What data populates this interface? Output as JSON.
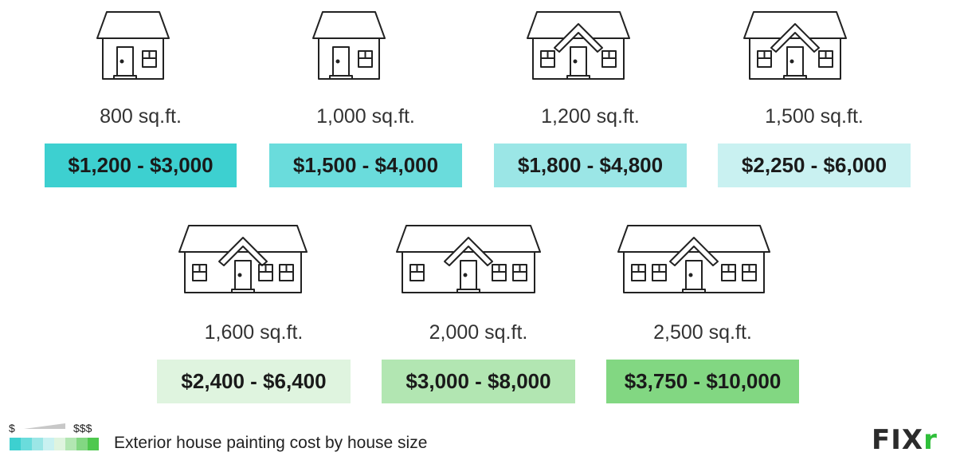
{
  "items": [
    {
      "sqft": "800 sq.ft.",
      "price": "$1,200 - $3,000",
      "color": "#3dd0d0",
      "house": {
        "gable": false,
        "left_windows": 0,
        "right_windows": 1
      }
    },
    {
      "sqft": "1,000 sq.ft.",
      "price": "$1,500 - $4,000",
      "color": "#6adcdc",
      "house": {
        "gable": false,
        "left_windows": 0,
        "right_windows": 1
      }
    },
    {
      "sqft": "1,200 sq.ft.",
      "price": "$1,800 - $4,800",
      "color": "#9be6e6",
      "house": {
        "gable": true,
        "left_windows": 1,
        "right_windows": 1
      }
    },
    {
      "sqft": "1,500 sq.ft.",
      "price": "$2,250 - $6,000",
      "color": "#c9f1f1",
      "house": {
        "gable": true,
        "left_windows": 1,
        "right_windows": 1
      }
    },
    {
      "sqft": "1,600 sq.ft.",
      "price": "$2,400 - $6,400",
      "color": "#dff4df",
      "house": {
        "gable": true,
        "left_windows": 1,
        "right_windows": 2
      }
    },
    {
      "sqft": "2,000 sq.ft.",
      "price": "$3,000 - $8,000",
      "color": "#b2e6b2",
      "house": {
        "gable": true,
        "left_windows": 1,
        "right_windows": 2
      }
    },
    {
      "sqft": "2,500 sq.ft.",
      "price": "$3,750 - $10,000",
      "color": "#82d782",
      "house": {
        "gable": true,
        "left_windows": 2,
        "right_windows": 2
      }
    }
  ],
  "legend": {
    "low": "$",
    "high": "$$$",
    "text": "Exterior house painting cost by house size",
    "colors": [
      "#3dd0d0",
      "#6adcdc",
      "#9be6e6",
      "#c9f1f1",
      "#dff4df",
      "#b2e6b2",
      "#82d782",
      "#4ec84e"
    ]
  },
  "logo": {
    "text": "FIX",
    "accent": "r",
    "accent_color": "#2fbf3a"
  }
}
